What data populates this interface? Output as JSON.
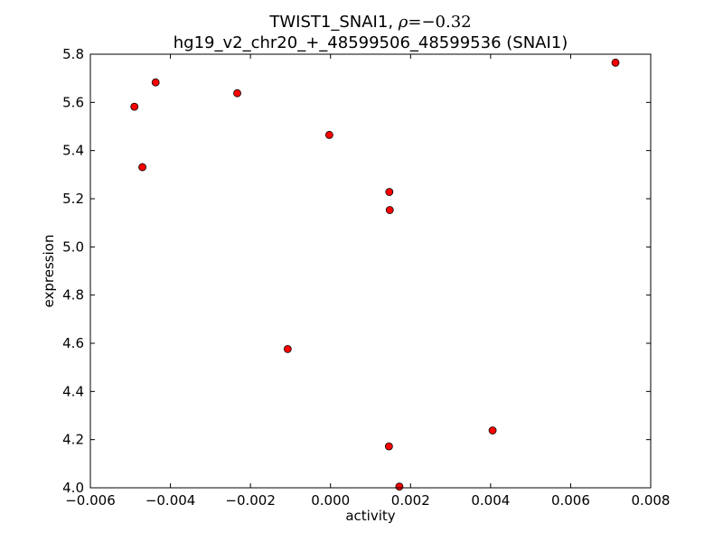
{
  "chart_data": {
    "type": "scatter",
    "title_line1_prefix": "TWIST1_SNAI1, ",
    "title_rho_symbol": "ρ",
    "title_rho_eq": "=",
    "title_rho_value": "−0.32",
    "title_line2": "hg19_v2_chr20_+_48599506_48599536 (SNAI1)",
    "xlabel": "activity",
    "ylabel": "expression",
    "xlim": [
      -0.006,
      0.008
    ],
    "ylim": [
      4.0,
      5.8
    ],
    "xticks": [
      -0.006,
      -0.004,
      -0.002,
      0.0,
      0.002,
      0.004,
      0.006,
      0.008
    ],
    "xtick_labels": [
      "−0.006",
      "−0.004",
      "−0.002",
      "0.000",
      "0.002",
      "0.004",
      "0.006",
      "0.008"
    ],
    "yticks": [
      4.0,
      4.2,
      4.4,
      4.6,
      4.8,
      5.0,
      5.2,
      5.4,
      5.6,
      5.8
    ],
    "ytick_labels": [
      "4.0",
      "4.2",
      "4.4",
      "4.6",
      "4.8",
      "5.0",
      "5.2",
      "5.4",
      "5.6",
      "5.8"
    ],
    "grid": false,
    "marker_color": "#ff0000",
    "marker_edge": "#000000",
    "points": [
      {
        "x": -0.0049,
        "y": 5.582
      },
      {
        "x": -0.00437,
        "y": 5.683
      },
      {
        "x": -0.0047,
        "y": 5.331
      },
      {
        "x": -0.00233,
        "y": 5.638
      },
      {
        "x": -3e-05,
        "y": 5.465
      },
      {
        "x": 0.00147,
        "y": 5.228
      },
      {
        "x": 0.00148,
        "y": 5.153
      },
      {
        "x": -0.00107,
        "y": 4.576
      },
      {
        "x": 0.00405,
        "y": 4.238
      },
      {
        "x": 0.00146,
        "y": 4.172
      },
      {
        "x": 0.00172,
        "y": 4.005
      },
      {
        "x": 0.00712,
        "y": 5.765
      }
    ]
  }
}
